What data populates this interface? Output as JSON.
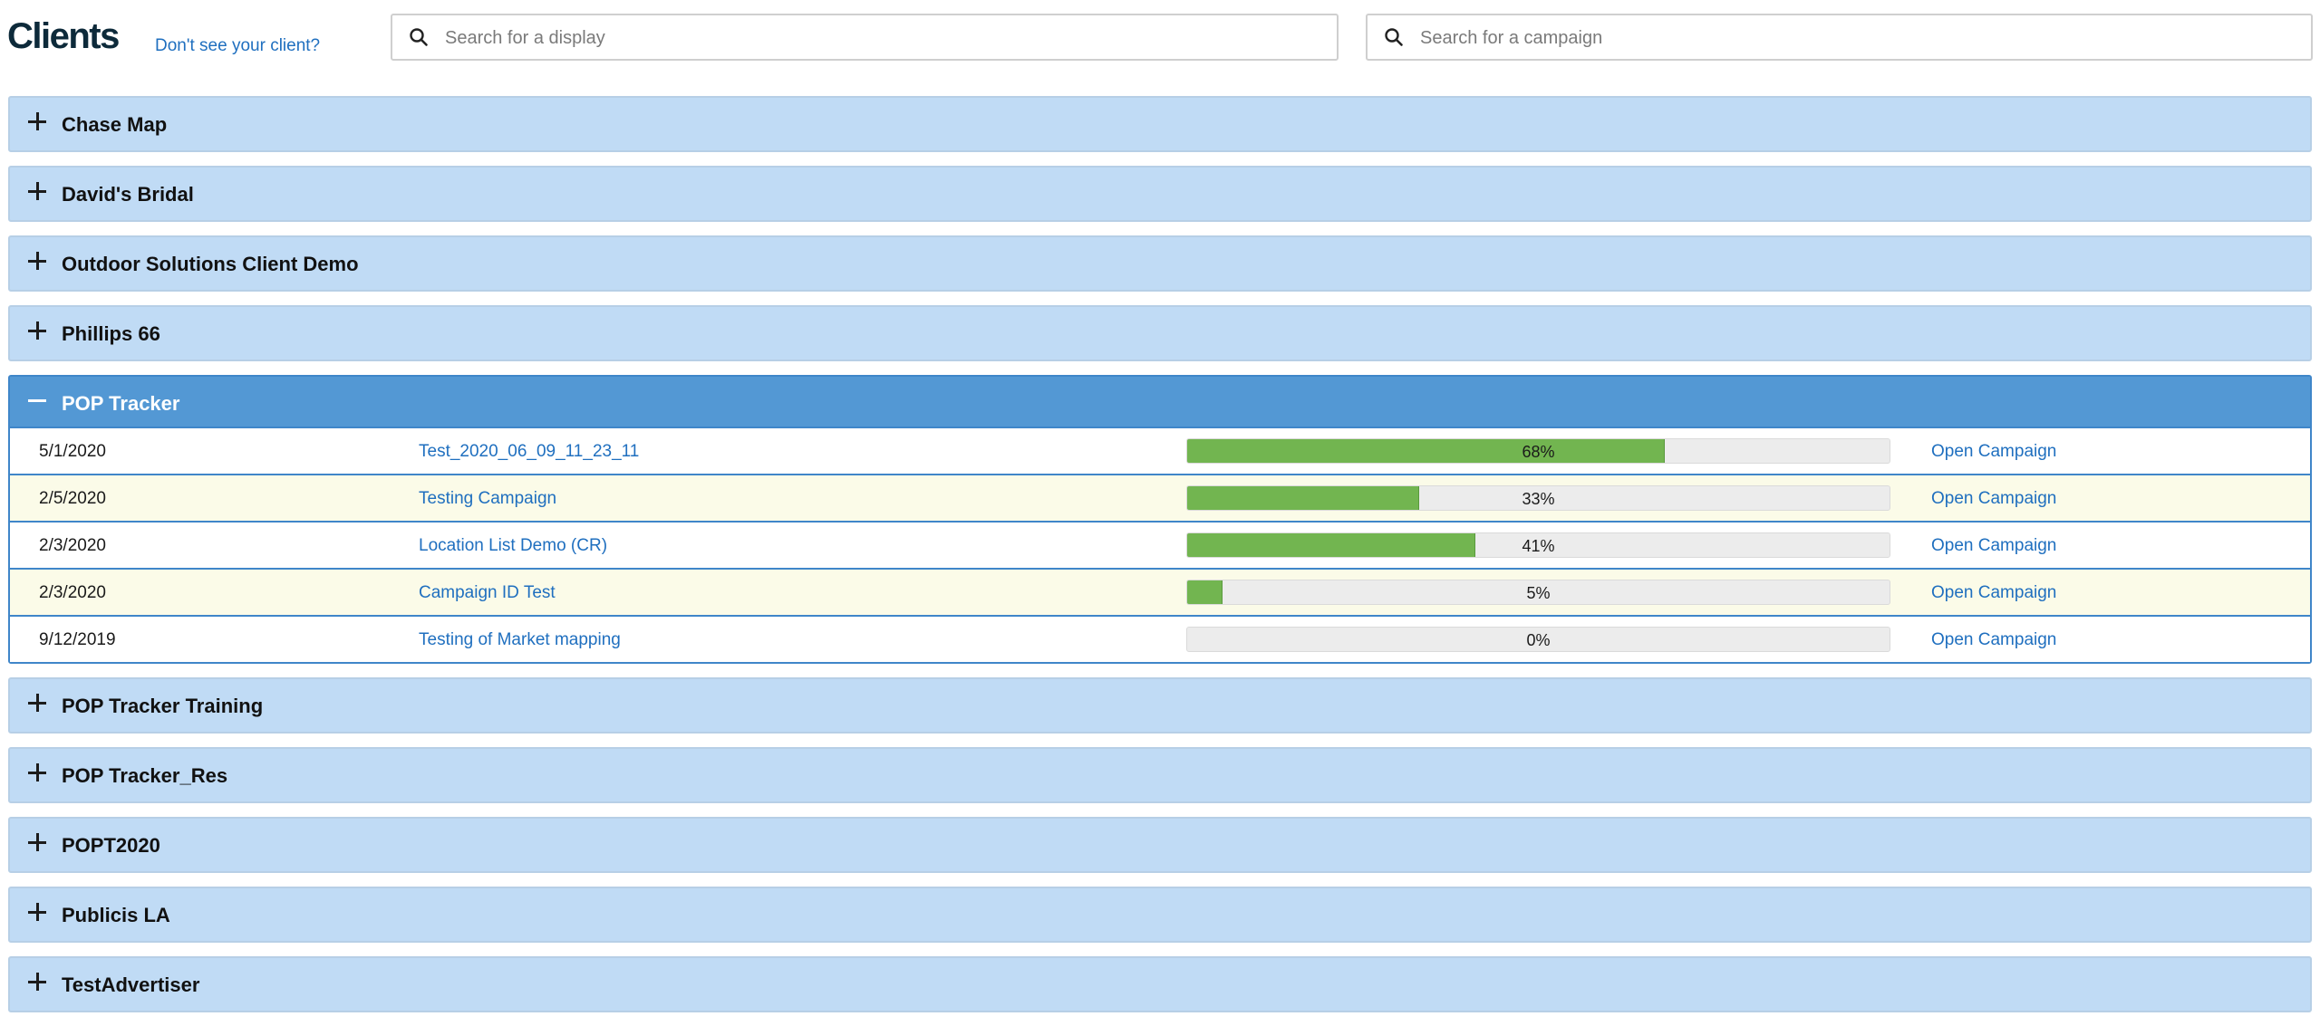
{
  "header": {
    "title": "Clients",
    "help_link": "Don't see your client?",
    "search_display_placeholder": "Search for a display",
    "search_campaign_placeholder": "Search for a campaign"
  },
  "clients": [
    {
      "name": "Chase Map",
      "expanded": false
    },
    {
      "name": "David's Bridal",
      "expanded": false
    },
    {
      "name": "Outdoor Solutions Client Demo",
      "expanded": false
    },
    {
      "name": "Phillips 66",
      "expanded": false
    },
    {
      "name": "POP Tracker",
      "expanded": true
    },
    {
      "name": "POP Tracker Training",
      "expanded": false
    },
    {
      "name": "POP Tracker_Res",
      "expanded": false
    },
    {
      "name": "POPT2020",
      "expanded": false
    },
    {
      "name": "Publicis LA",
      "expanded": false
    },
    {
      "name": "TestAdvertiser",
      "expanded": false
    }
  ],
  "campaigns": [
    {
      "date": "5/1/2020",
      "name": "Test_2020_06_09_11_23_11",
      "progress": 68,
      "progress_label": "68%",
      "action": "Open Campaign"
    },
    {
      "date": "2/5/2020",
      "name": "Testing Campaign",
      "progress": 33,
      "progress_label": "33%",
      "action": "Open Campaign"
    },
    {
      "date": "2/3/2020",
      "name": "Location List Demo (CR)",
      "progress": 41,
      "progress_label": "41%",
      "action": "Open Campaign"
    },
    {
      "date": "2/3/2020",
      "name": "Campaign ID Test",
      "progress": 5,
      "progress_label": "5%",
      "action": "Open Campaign"
    },
    {
      "date": "9/12/2019",
      "name": "Testing of Market mapping",
      "progress": 0,
      "progress_label": "0%",
      "action": "Open Campaign"
    }
  ],
  "colors": {
    "accent": "#5398d4",
    "collapsed_bg": "#c0dbf5",
    "link": "#1f6fbf",
    "progress": "#72b550",
    "alt_row": "#fbfbe8"
  }
}
